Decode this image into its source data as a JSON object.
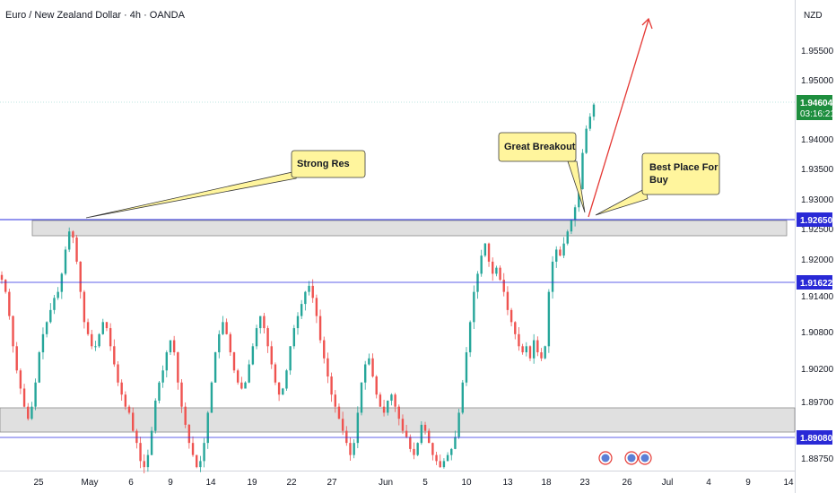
{
  "header": {
    "title": "Euro / New Zealand Dollar · 4h · OANDA",
    "currency": "NZD"
  },
  "colors": {
    "up": "#26a69a",
    "down": "#ef5350",
    "level_line": "#2a2ee0",
    "zone_fill": "#e0e0e0",
    "callout_fill": "#fff59d",
    "arrow": "#e53935",
    "price_tag": "#1e8e3e",
    "level_tag": "#2929d6"
  },
  "chart_data": {
    "type": "candlestick",
    "symbol": "Euro / New Zealand Dollar",
    "timeframe": "4h",
    "broker": "OANDA",
    "ylim": [
      1.885,
      1.961
    ],
    "y_ticks": [
      "1.95500",
      "1.95000",
      "1.94000",
      "1.93500",
      "1.93000",
      "1.92500",
      "1.92000",
      "1.91400",
      "1.90800",
      "1.90200",
      "1.89700",
      "1.88750"
    ],
    "x_ticks": [
      "25",
      "May",
      "6",
      "9",
      "14",
      "19",
      "22",
      "27",
      "Jun",
      "5",
      "10",
      "13",
      "18",
      "23",
      "26",
      "Jul",
      "4",
      "9",
      "14"
    ],
    "current_price": "1.94604",
    "countdown": "03:16:21",
    "levels": [
      {
        "label": "1.92650",
        "value": 1.9265
      },
      {
        "label": "1.91622",
        "value": 1.91622
      },
      {
        "label": "1.89080",
        "value": 1.8908
      }
    ],
    "zones": [
      {
        "from": 1.9237,
        "to": 1.9262
      },
      {
        "from": 1.891,
        "to": 1.8948
      }
    ],
    "annotations": [
      {
        "text": "Strong Res"
      },
      {
        "text": "Great Breakout"
      },
      {
        "text_lines": [
          "Best Place For",
          "Buy"
        ]
      }
    ],
    "close_path": [
      1.917,
      1.915,
      1.911,
      1.906,
      1.902,
      1.899,
      1.896,
      1.894,
      1.896,
      1.9,
      1.905,
      1.908,
      1.91,
      1.912,
      1.914,
      1.915,
      1.918,
      1.922,
      1.925,
      1.924,
      1.92,
      1.915,
      1.91,
      1.908,
      1.906,
      1.906,
      1.908,
      1.91,
      1.909,
      1.906,
      1.903,
      1.9,
      1.898,
      1.896,
      1.895,
      1.892,
      1.89,
      1.887,
      1.886,
      1.888,
      1.892,
      1.897,
      1.9,
      1.902,
      1.905,
      1.907,
      1.905,
      1.9,
      1.896,
      1.893,
      1.89,
      1.888,
      1.886,
      1.887,
      1.89,
      1.895,
      1.9,
      1.905,
      1.908,
      1.91,
      1.908,
      1.905,
      1.902,
      1.9,
      1.899,
      1.9,
      1.903,
      1.906,
      1.909,
      1.911,
      1.909,
      1.906,
      1.903,
      1.9,
      1.898,
      1.899,
      1.902,
      1.906,
      1.909,
      1.911,
      1.913,
      1.915,
      1.916,
      1.914,
      1.911,
      1.907,
      1.904,
      1.901,
      1.898,
      1.896,
      1.894,
      1.892,
      1.89,
      1.888,
      1.89,
      1.895,
      1.9,
      1.903,
      1.904,
      1.901,
      1.898,
      1.896,
      1.895,
      1.897,
      1.898,
      1.896,
      1.894,
      1.892,
      1.891,
      1.889,
      1.888,
      1.89,
      1.893,
      1.892,
      1.89,
      1.888,
      1.887,
      1.886,
      1.887,
      1.888,
      1.889,
      1.891,
      1.895,
      1.9,
      1.905,
      1.91,
      1.915,
      1.918,
      1.921,
      1.923,
      1.92,
      1.918,
      1.919,
      1.917,
      1.915,
      1.912,
      1.91,
      1.908,
      1.906,
      1.905,
      1.906,
      1.904,
      1.907,
      1.905,
      1.904,
      1.906,
      1.915,
      1.92,
      1.922,
      1.921,
      1.923,
      1.925,
      1.927,
      1.929,
      1.932,
      1.938,
      1.942,
      1.944,
      1.946
    ]
  }
}
